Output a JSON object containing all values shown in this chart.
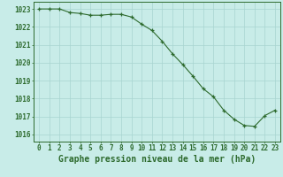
{
  "x": [
    0,
    1,
    2,
    3,
    4,
    5,
    6,
    7,
    8,
    9,
    10,
    11,
    12,
    13,
    14,
    15,
    16,
    17,
    18,
    19,
    20,
    21,
    22,
    23
  ],
  "y": [
    1023.0,
    1023.0,
    1023.0,
    1022.8,
    1022.75,
    1022.65,
    1022.65,
    1022.7,
    1022.7,
    1022.55,
    1022.15,
    1021.8,
    1021.2,
    1020.5,
    1019.9,
    1019.25,
    1018.55,
    1018.1,
    1017.35,
    1016.85,
    1016.5,
    1016.45,
    1017.05,
    1017.35
  ],
  "line_color": "#2d6a2d",
  "marker": "+",
  "marker_size": 3.5,
  "bg_color": "#c8ece8",
  "grid_color": "#a8d4d0",
  "xlabel": "Graphe pression niveau de la mer (hPa)",
  "xlim": [
    -0.5,
    23.5
  ],
  "ylim": [
    1015.6,
    1023.4
  ],
  "yticks": [
    1016,
    1017,
    1018,
    1019,
    1020,
    1021,
    1022,
    1023
  ],
  "xticks": [
    0,
    1,
    2,
    3,
    4,
    5,
    6,
    7,
    8,
    9,
    10,
    11,
    12,
    13,
    14,
    15,
    16,
    17,
    18,
    19,
    20,
    21,
    22,
    23
  ],
  "tick_fontsize": 5.5,
  "xlabel_fontsize": 7.0,
  "label_color": "#2d6a2d"
}
